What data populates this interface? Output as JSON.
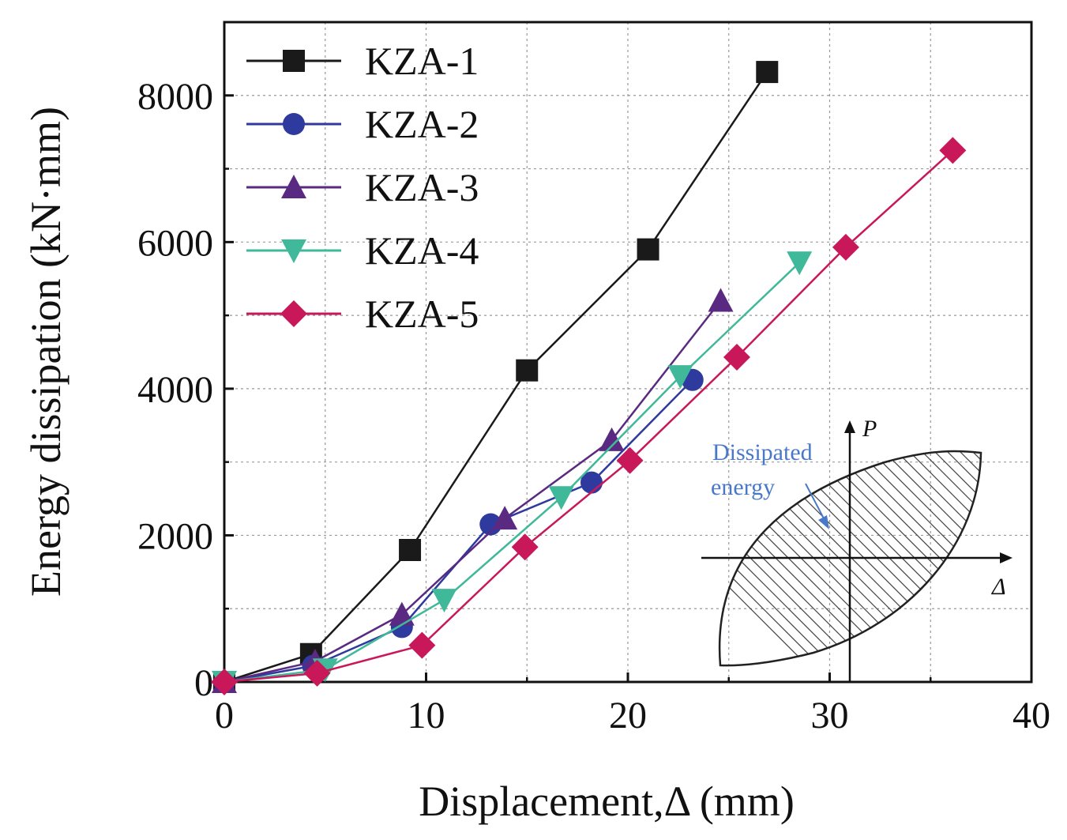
{
  "chart_data": {
    "type": "line",
    "xlabel": "Displacement,Δ (mm)",
    "ylabel": "Energy dissipation (kN·mm)",
    "xlim": [
      0,
      40
    ],
    "ylim": [
      0,
      9000
    ],
    "xticks": [
      0,
      10,
      20,
      30,
      40
    ],
    "yticks": [
      0,
      2000,
      4000,
      6000,
      8000
    ],
    "xtick_labels": [
      "0",
      "10",
      "20",
      "30",
      "40"
    ],
    "ytick_labels": [
      "0",
      "2000",
      "4000",
      "6000",
      "8000"
    ],
    "grid": true,
    "legend_position": "top-left",
    "series": [
      {
        "name": "KZA-1",
        "color": "#1a1a1a",
        "marker": "square",
        "x": [
          0,
          4.3,
          9.2,
          15.0,
          21.0,
          26.9
        ],
        "y": [
          0,
          380,
          1800,
          4250,
          5900,
          8320
        ]
      },
      {
        "name": "KZA-2",
        "color": "#2e3a9e",
        "marker": "circle",
        "x": [
          0,
          4.4,
          8.8,
          13.2,
          18.2,
          23.2
        ],
        "y": [
          0,
          220,
          750,
          2150,
          2720,
          4120
        ]
      },
      {
        "name": "KZA-3",
        "color": "#5a2a82",
        "marker": "triangle-up",
        "x": [
          0,
          4.5,
          8.8,
          13.9,
          19.2,
          24.6
        ],
        "y": [
          0,
          280,
          920,
          2230,
          3300,
          5200
        ]
      },
      {
        "name": "KZA-4",
        "color": "#3fb99a",
        "marker": "triangle-down",
        "x": [
          0,
          5.0,
          10.9,
          16.7,
          22.6,
          28.5
        ],
        "y": [
          0,
          170,
          1120,
          2520,
          4170,
          5720
        ]
      },
      {
        "name": "KZA-5",
        "color": "#c8185a",
        "marker": "diamond",
        "x": [
          0,
          4.6,
          9.8,
          14.9,
          20.1,
          25.4,
          30.8,
          36.1
        ],
        "y": [
          0,
          120,
          500,
          1840,
          3020,
          4430,
          5930,
          7250
        ]
      }
    ],
    "inset": {
      "note_line1": "Dissipated",
      "note_line2": "energy",
      "p_label": "P",
      "delta_label": "Δ"
    }
  }
}
